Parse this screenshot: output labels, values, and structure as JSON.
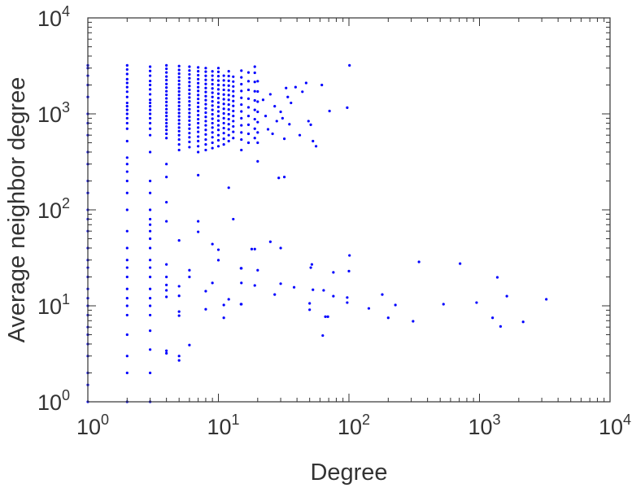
{
  "chart_data": {
    "type": "scatter",
    "title": "",
    "xlabel": "Degree",
    "ylabel": "Average neighbor degree",
    "xscale": "log",
    "yscale": "log",
    "xlim": [
      1,
      10000
    ],
    "ylim": [
      1,
      10000
    ],
    "grid": false,
    "marker_color": "#0000ff",
    "xticks": [
      {
        "base": "10",
        "exp": "0"
      },
      {
        "base": "10",
        "exp": "1"
      },
      {
        "base": "10",
        "exp": "2"
      },
      {
        "base": "10",
        "exp": "3"
      },
      {
        "base": "10",
        "exp": "4"
      }
    ],
    "yticks": [
      {
        "base": "10",
        "exp": "0"
      },
      {
        "base": "10",
        "exp": "1"
      },
      {
        "base": "10",
        "exp": "2"
      },
      {
        "base": "10",
        "exp": "3"
      },
      {
        "base": "10",
        "exp": "4"
      }
    ],
    "columns": [
      {
        "x": 1,
        "y": [
          1,
          1.5,
          2,
          3,
          4,
          5,
          6,
          8,
          10,
          12,
          15,
          20,
          25,
          30,
          40,
          60,
          80,
          100,
          150,
          200,
          300,
          400,
          600,
          800,
          1000,
          1500,
          2000,
          2500,
          3000,
          3200
        ]
      },
      {
        "x": 2,
        "y": [
          1,
          2,
          3,
          5,
          8,
          10,
          12,
          15,
          20,
          25,
          30,
          40,
          60,
          100,
          150,
          200,
          250,
          300,
          350,
          520,
          700,
          800,
          900,
          1000,
          1100,
          1200,
          1300,
          1500,
          1700,
          1900,
          2100,
          2300,
          2600,
          2900,
          3200
        ]
      },
      {
        "x": 3,
        "y": [
          1,
          2,
          3.5,
          5.5,
          8,
          10,
          12,
          15,
          20,
          25,
          30,
          40,
          50,
          60,
          70,
          80,
          100,
          150,
          200,
          400,
          600,
          700,
          800,
          900,
          1000,
          1100,
          1200,
          1300,
          1400,
          1600,
          1800,
          2000,
          2200,
          2500,
          2800,
          3100
        ]
      },
      {
        "x": 4,
        "y": [
          3.2,
          3.4,
          12.4,
          14.5,
          16.5,
          20,
          27,
          76,
          120,
          220,
          300,
          560,
          620,
          680,
          740,
          800,
          870,
          950,
          1030,
          1120,
          1220,
          1330,
          1450,
          1580,
          1720,
          1880,
          2050,
          2250,
          2450,
          2700,
          2950,
          3200
        ]
      },
      {
        "x": 5,
        "y": [
          2.7,
          3.0,
          7.9,
          8.7,
          12.7,
          16,
          48,
          420,
          480,
          540,
          600,
          660,
          720,
          790,
          860,
          940,
          1020,
          1110,
          1210,
          1320,
          1440,
          1570,
          1710,
          1860,
          2030,
          2210,
          2410,
          2630,
          2870,
          3150
        ]
      },
      {
        "x": 6,
        "y": [
          3.9,
          20,
          23.5,
          450,
          510,
          570,
          630,
          700,
          770,
          850,
          930,
          1020,
          1120,
          1230,
          1350,
          1480,
          1620,
          1780,
          1950,
          2140,
          2350,
          2580,
          2830,
          3100
        ]
      },
      {
        "x": 7,
        "y": [
          59,
          76,
          230,
          400,
          460,
          520,
          580,
          650,
          720,
          800,
          880,
          970,
          1070,
          1180,
          1300,
          1430,
          1570,
          1730,
          1900,
          2090,
          2300,
          2530,
          2780,
          3050
        ]
      },
      {
        "x": 8,
        "y": [
          9.2,
          14.2,
          420,
          480,
          540,
          610,
          680,
          760,
          840,
          930,
          1030,
          1140,
          1260,
          1390,
          1530,
          1690,
          1860,
          2050,
          2260,
          2490,
          2750,
          3000
        ]
      },
      {
        "x": 9,
        "y": [
          17.3,
          44,
          440,
          500,
          570,
          640,
          720,
          800,
          890,
          990,
          1100,
          1220,
          1350,
          1500,
          1660,
          1840,
          2040,
          2260,
          2500,
          2770
        ]
      },
      {
        "x": 10,
        "y": [
          29.9,
          38.4,
          460,
          530,
          600,
          680,
          760,
          850,
          950,
          1060,
          1180,
          1310,
          1460,
          1620,
          1800,
          2000,
          2220,
          2470,
          2740,
          3000
        ]
      },
      {
        "x": 11,
        "y": [
          7.5,
          10.2,
          480,
          550,
          630,
          710,
          800,
          900,
          1010,
          1130,
          1270,
          1420,
          1590,
          1780,
          1990,
          2230,
          2500
        ]
      },
      {
        "x": 12,
        "y": [
          11.7,
          170,
          520,
          600,
          690,
          780,
          880,
          990,
          1110,
          1250,
          1400,
          1570,
          1760,
          1970,
          2210,
          2480,
          2780
        ]
      },
      {
        "x": 13,
        "y": [
          80,
          560,
          650,
          740,
          840,
          950,
          1070,
          1210,
          1360,
          1530,
          1720,
          1930,
          2170,
          2440
        ]
      },
      {
        "x": 15,
        "y": [
          10.4,
          17.3,
          24.6,
          420,
          540,
          640,
          760,
          900,
          1060,
          1250,
          1470,
          1730,
          2040,
          2400,
          2820
        ]
      },
      {
        "x": 17,
        "y": [
          500,
          620,
          770,
          950,
          1170,
          1440,
          1780,
          2190,
          2700
        ]
      },
      {
        "x": 19,
        "y": [
          16.3,
          39,
          560,
          700,
          880,
          1100,
          1380,
          1720,
          2150,
          2680,
          3100
        ]
      },
      {
        "x": 20,
        "y": [
          23.5,
          320,
          500,
          640,
          820,
          1050,
          1340,
          1710,
          2190
        ]
      }
    ],
    "points": [
      [
        24,
        690
      ],
      [
        27,
        1200
      ],
      [
        28,
        840
      ],
      [
        29,
        215
      ],
      [
        32,
        220
      ],
      [
        32,
        550
      ],
      [
        33,
        1860
      ],
      [
        39,
        1900
      ],
      [
        44,
        1700
      ],
      [
        47,
        2100
      ],
      [
        49,
        840
      ],
      [
        51,
        770
      ],
      [
        53,
        520
      ],
      [
        56,
        460
      ],
      [
        62,
        2000
      ],
      [
        71,
        1070
      ],
      [
        97,
        1160
      ],
      [
        101,
        3200
      ],
      [
        22,
        1400
      ],
      [
        23,
        950
      ],
      [
        26,
        620
      ],
      [
        30,
        1050
      ],
      [
        35,
        780
      ],
      [
        36,
        1300
      ],
      [
        42,
        600
      ],
      [
        25,
        1600
      ],
      [
        31,
        900
      ],
      [
        34,
        1500
      ],
      [
        101,
        33.5
      ],
      [
        100,
        23
      ],
      [
        52,
        27
      ],
      [
        51,
        25
      ],
      [
        76,
        22.3
      ],
      [
        344,
        28.7
      ],
      [
        710,
        27.5
      ],
      [
        1370,
        19.8
      ],
      [
        1620,
        12.6
      ],
      [
        3250,
        11.7
      ],
      [
        2160,
        6.8
      ],
      [
        1260,
        7.5
      ],
      [
        1450,
        6.1
      ],
      [
        950,
        10.8
      ],
      [
        530,
        10.4
      ],
      [
        310,
        6.9
      ],
      [
        200,
        7.5
      ],
      [
        227,
        10.2
      ],
      [
        180,
        13.1
      ],
      [
        142,
        9.4
      ],
      [
        97,
        12.2
      ],
      [
        97,
        10.8
      ],
      [
        76,
        12.6
      ],
      [
        64,
        14.5
      ],
      [
        66,
        7.7
      ],
      [
        69,
        7.7
      ],
      [
        63,
        4.9
      ],
      [
        53,
        14.7
      ],
      [
        50,
        9.1
      ],
      [
        50,
        10.6
      ],
      [
        38,
        15.6
      ],
      [
        30,
        17
      ],
      [
        27,
        13.1
      ],
      [
        30,
        40
      ],
      [
        25,
        46.5
      ],
      [
        18,
        39
      ],
      [
        14.9,
        24.6
      ],
      [
        14.9,
        10.4
      ]
    ]
  }
}
